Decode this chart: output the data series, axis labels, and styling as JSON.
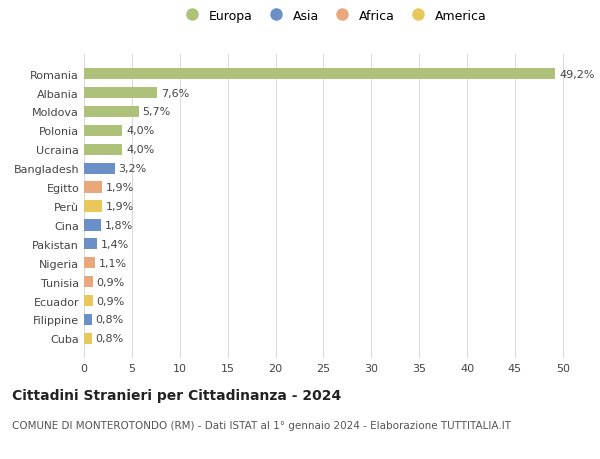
{
  "countries": [
    "Romania",
    "Albania",
    "Moldova",
    "Polonia",
    "Ucraina",
    "Bangladesh",
    "Egitto",
    "Perù",
    "Cina",
    "Pakistan",
    "Nigeria",
    "Tunisia",
    "Ecuador",
    "Filippine",
    "Cuba"
  ],
  "values": [
    49.2,
    7.6,
    5.7,
    4.0,
    4.0,
    3.2,
    1.9,
    1.9,
    1.8,
    1.4,
    1.1,
    0.9,
    0.9,
    0.8,
    0.8
  ],
  "labels": [
    "49,2%",
    "7,6%",
    "5,7%",
    "4,0%",
    "4,0%",
    "3,2%",
    "1,9%",
    "1,9%",
    "1,8%",
    "1,4%",
    "1,1%",
    "0,9%",
    "0,9%",
    "0,8%",
    "0,8%"
  ],
  "continents": [
    "Europa",
    "Europa",
    "Europa",
    "Europa",
    "Europa",
    "Asia",
    "Africa",
    "America",
    "Asia",
    "Asia",
    "Africa",
    "Africa",
    "America",
    "Asia",
    "America"
  ],
  "colors": {
    "Europa": "#adc178",
    "Asia": "#6b8fc7",
    "Africa": "#e8a87c",
    "America": "#e8c85a"
  },
  "xlim": [
    0,
    52
  ],
  "xticks": [
    0,
    5,
    10,
    15,
    20,
    25,
    30,
    35,
    40,
    45,
    50
  ],
  "title": "Cittadini Stranieri per Cittadinanza - 2024",
  "subtitle": "COMUNE DI MONTEROTONDO (RM) - Dati ISTAT al 1° gennaio 2024 - Elaborazione TUTTITALIA.IT",
  "background_color": "#ffffff",
  "grid_color": "#d8d8d8",
  "bar_height": 0.6,
  "label_fontsize": 8,
  "tick_fontsize": 8,
  "title_fontsize": 10,
  "subtitle_fontsize": 7.5,
  "legend_fontsize": 9
}
